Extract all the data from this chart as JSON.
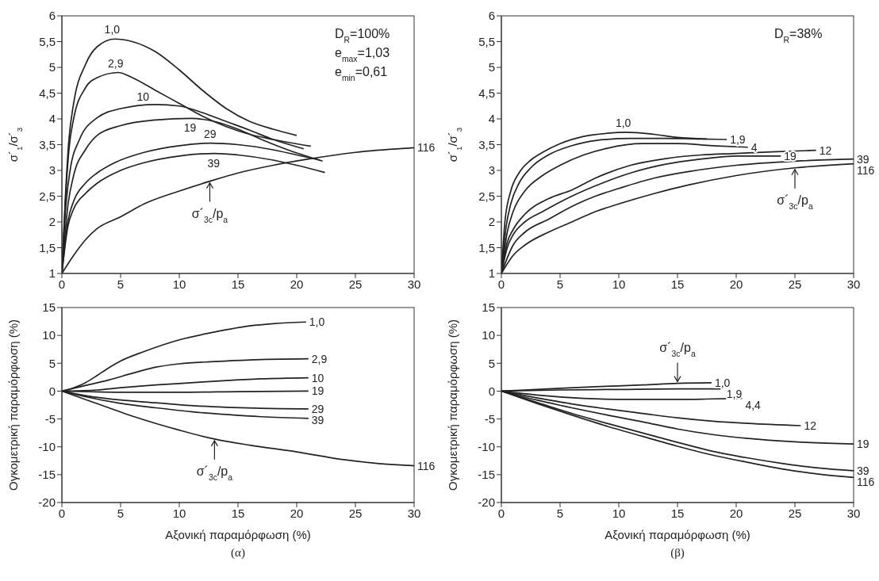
{
  "chart_data": [
    {
      "type": "line",
      "ylabel": "σ´$_{1}$/σ´$_{3}$",
      "xlim": [
        0,
        30
      ],
      "xticks": [
        0,
        5,
        10,
        15,
        20,
        25,
        30
      ],
      "ylim": [
        1,
        6
      ],
      "yticks": [
        1,
        {
          "value": 1.5,
          "label": "1,5"
        },
        2,
        {
          "value": 2.5,
          "label": "2,5"
        },
        3,
        {
          "value": 3.5,
          "label": "3,5"
        },
        4,
        {
          "value": 4.5,
          "label": "4,5"
        },
        5,
        {
          "value": 5.5,
          "label": "5,5"
        },
        6
      ],
      "annotations": [
        "D$_{R}$=100%",
        "e$_{max}$=1,03",
        "e$_{min}$=0,61",
        {
          "text": "σ´$_{3c}$/p$_{a}$",
          "x": 12.6,
          "y": 2.79
        }
      ],
      "series": [
        {
          "name": "1,0",
          "color": "#222222",
          "x": [
            0,
            0.3,
            0.6,
            1,
            2,
            3,
            4.5,
            6,
            8,
            10,
            12,
            14,
            16,
            18,
            20
          ],
          "values": [
            1,
            2.5,
            3.6,
            4.3,
            5.05,
            5.4,
            5.55,
            5.5,
            5.3,
            4.95,
            4.55,
            4.2,
            3.95,
            3.8,
            3.68
          ]
        },
        {
          "name": "2,9",
          "color": "#222222",
          "x": [
            0,
            0.3,
            0.6,
            1,
            2,
            3,
            4.8,
            6,
            8,
            10,
            12,
            14,
            16,
            18,
            21.2
          ],
          "values": [
            1,
            2.4,
            3.4,
            4.0,
            4.6,
            4.8,
            4.9,
            4.8,
            4.55,
            4.3,
            4.05,
            3.85,
            3.7,
            3.6,
            3.47
          ]
        },
        {
          "name": "10",
          "color": "#222222",
          "x": [
            0,
            0.3,
            0.7,
            1.5,
            3,
            5,
            8,
            10,
            12,
            14,
            16,
            18,
            20.6
          ],
          "values": [
            1,
            2.2,
            3.0,
            3.6,
            4.02,
            4.2,
            4.28,
            4.25,
            4.12,
            3.95,
            3.78,
            3.6,
            3.42
          ]
        },
        {
          "name": "19",
          "color": "#222222",
          "x": [
            0,
            0.5,
            1,
            2,
            3,
            5,
            8,
            11,
            13,
            15,
            17,
            19,
            22.2
          ],
          "values": [
            1,
            2.3,
            2.9,
            3.4,
            3.68,
            3.87,
            3.98,
            4.01,
            3.95,
            3.8,
            3.6,
            3.42,
            3.18
          ]
        },
        {
          "name": "29",
          "color": "#222222",
          "x": [
            0,
            0.5,
            1,
            2,
            3,
            4.5,
            7,
            10,
            12.7,
            15,
            18,
            20,
            22
          ],
          "values": [
            1,
            2.0,
            2.4,
            2.75,
            2.95,
            3.15,
            3.35,
            3.48,
            3.53,
            3.5,
            3.4,
            3.3,
            3.2
          ]
        },
        {
          "name": "39",
          "color": "#222222",
          "x": [
            0,
            0.5,
            1,
            2,
            3,
            5,
            7,
            10,
            13,
            15,
            18,
            20,
            22.4
          ],
          "values": [
            1,
            1.9,
            2.25,
            2.55,
            2.75,
            3.0,
            3.15,
            3.28,
            3.33,
            3.3,
            3.2,
            3.1,
            2.96
          ]
        },
        {
          "name": "116",
          "color": "#222222",
          "x": [
            0,
            1,
            2,
            3,
            5,
            7,
            10,
            12.6,
            15,
            18,
            21,
            25,
            30
          ],
          "values": [
            1,
            1.35,
            1.65,
            1.87,
            2.1,
            2.35,
            2.6,
            2.79,
            2.95,
            3.1,
            3.22,
            3.35,
            3.44
          ]
        }
      ]
    },
    {
      "type": "line",
      "ylabel": "σ´$_{1}$/σ´$_{3}$",
      "xlim": [
        0,
        30
      ],
      "xticks": [
        0,
        5,
        10,
        15,
        20,
        25,
        30
      ],
      "ylim": [
        1,
        6
      ],
      "yticks": [
        1,
        {
          "value": 1.5,
          "label": "1,5"
        },
        2,
        {
          "value": 2.5,
          "label": "2,5"
        },
        3,
        {
          "value": 3.5,
          "label": "3,5"
        },
        4,
        {
          "value": 4.5,
          "label": "4,5"
        },
        5,
        {
          "value": 5.5,
          "label": "5,5"
        },
        6
      ],
      "annotations": [
        "D$_{R}$=38%",
        {
          "text": "σ´$_{3c}$/p$_{a}$",
          "x": 25,
          "y": 3.05
        }
      ],
      "series": [
        {
          "name": "1,0",
          "color": "#222222",
          "x": [
            0,
            0.3,
            0.8,
            1.5,
            2.5,
            3.5,
            5,
            7,
            9,
            10.6,
            13,
            15,
            17.5
          ],
          "values": [
            1,
            2.0,
            2.6,
            2.95,
            3.2,
            3.35,
            3.52,
            3.66,
            3.72,
            3.74,
            3.7,
            3.64,
            3.61
          ]
        },
        {
          "name": "1,9",
          "color": "#222222",
          "x": [
            0,
            0.4,
            0.8,
            1.5,
            2.5,
            4,
            6,
            8,
            11,
            14,
            17,
            19.2
          ],
          "values": [
            1,
            1.9,
            2.35,
            2.75,
            3.05,
            3.3,
            3.48,
            3.58,
            3.62,
            3.62,
            3.61,
            3.6
          ]
        },
        {
          "name": "4",
          "color": "#222222",
          "x": [
            0,
            0.5,
            1,
            2,
            3.5,
            5,
            7,
            9,
            12,
            15,
            18,
            21
          ],
          "values": [
            1,
            1.8,
            2.2,
            2.6,
            2.9,
            3.1,
            3.3,
            3.43,
            3.52,
            3.52,
            3.48,
            3.45
          ]
        },
        {
          "name": "12",
          "color": "#222222",
          "x": [
            0,
            0.5,
            1,
            2,
            4,
            6,
            8,
            11,
            14,
            17,
            20,
            23,
            26.8
          ],
          "values": [
            1,
            1.6,
            1.85,
            2.15,
            2.45,
            2.62,
            2.85,
            3.1,
            3.23,
            3.3,
            3.33,
            3.36,
            3.39
          ]
        },
        {
          "name": "19",
          "color": "#222222",
          "x": [
            0,
            0.5,
            1,
            2,
            3.5,
            6,
            8,
            11,
            14,
            17,
            20,
            23.8
          ],
          "values": [
            1,
            1.5,
            1.75,
            2.0,
            2.2,
            2.5,
            2.7,
            2.95,
            3.12,
            3.22,
            3.28,
            3.28
          ]
        },
        {
          "name": "39",
          "color": "#222222",
          "x": [
            0,
            1,
            2,
            4,
            6,
            8,
            10,
            13,
            16,
            20,
            25,
            30
          ],
          "values": [
            1,
            1.55,
            1.8,
            2.05,
            2.3,
            2.5,
            2.65,
            2.85,
            2.98,
            3.1,
            3.18,
            3.22
          ]
        },
        {
          "name": "116",
          "color": "#222222",
          "x": [
            0,
            1,
            2,
            4,
            6,
            8,
            10,
            13,
            16,
            20,
            25,
            30
          ],
          "values": [
            1,
            1.35,
            1.55,
            1.8,
            2.0,
            2.2,
            2.35,
            2.55,
            2.72,
            2.9,
            3.05,
            3.13
          ]
        }
      ]
    },
    {
      "type": "line",
      "title": "(α)",
      "xlabel": "Αξονική παραμόρφωση (%)",
      "ylabel": "Ογκομετρική παραμόρφωση (%)",
      "xlim": [
        0,
        30
      ],
      "xticks": [
        0,
        5,
        10,
        15,
        20,
        25,
        30
      ],
      "ylim": [
        -20,
        15
      ],
      "yticks": [
        -20,
        -15,
        -10,
        -5,
        0,
        5,
        10,
        15
      ],
      "annotations": [
        {
          "text": "σ´$_{3c}$/p$_{a}$",
          "x": 13,
          "y": -8.6
        }
      ],
      "series": [
        {
          "name": "1,0",
          "color": "#222222",
          "x": [
            0,
            1,
            2,
            3,
            4,
            5,
            7,
            10,
            13,
            16,
            18,
            20.8
          ],
          "values": [
            0,
            0.6,
            1.5,
            2.8,
            4.2,
            5.4,
            7.1,
            9.2,
            10.6,
            11.7,
            12.1,
            12.4
          ]
        },
        {
          "name": "2,9",
          "color": "#222222",
          "x": [
            0,
            2,
            4,
            6,
            8,
            10,
            13,
            16,
            21
          ],
          "values": [
            0,
            1.0,
            2.0,
            3.2,
            4.3,
            4.9,
            5.3,
            5.6,
            5.8
          ]
        },
        {
          "name": "10",
          "color": "#222222",
          "x": [
            0,
            3,
            5,
            8,
            11,
            14,
            17,
            21
          ],
          "values": [
            0,
            0.2,
            0.6,
            1.1,
            1.5,
            1.9,
            2.2,
            2.4
          ]
        },
        {
          "name": "19",
          "color": "#222222",
          "x": [
            0,
            5,
            10,
            15,
            21
          ],
          "values": [
            0,
            -0.2,
            -0.2,
            -0.1,
            0
          ]
        },
        {
          "name": "29",
          "color": "#222222",
          "x": [
            0,
            2,
            5,
            8,
            11,
            14,
            17,
            21
          ],
          "values": [
            0,
            -0.8,
            -1.6,
            -2.1,
            -2.6,
            -2.9,
            -3.1,
            -3.2
          ]
        },
        {
          "name": "39",
          "color": "#222222",
          "x": [
            0,
            2,
            5,
            8,
            11,
            14,
            17,
            21
          ],
          "values": [
            0,
            -1.0,
            -2.2,
            -3.0,
            -3.7,
            -4.2,
            -4.6,
            -4.9
          ]
        },
        {
          "name": "116",
          "color": "#222222",
          "x": [
            0,
            2,
            4,
            6,
            8,
            10,
            13,
            16,
            20,
            24,
            27,
            30
          ],
          "values": [
            0,
            -1.5,
            -3.0,
            -4.5,
            -5.8,
            -7.0,
            -8.6,
            -9.7,
            -10.9,
            -12.3,
            -13.0,
            -13.4
          ]
        }
      ]
    },
    {
      "type": "line",
      "title": "(β)",
      "xlabel": "Αξονική παραμόρφωση (%)",
      "ylabel": "Ογκομετρική παραμόρφωση (%)",
      "xlim": [
        0,
        30
      ],
      "xticks": [
        0,
        5,
        10,
        15,
        20,
        25,
        30
      ],
      "ylim": [
        -20,
        15
      ],
      "yticks": [
        -20,
        -15,
        -10,
        -5,
        0,
        5,
        10,
        15
      ],
      "annotations": [
        {
          "text": "σ´$_{3c}$/p$_{a}$",
          "x": 15,
          "y": 1.4
        }
      ],
      "series": [
        {
          "name": "1,0",
          "color": "#222222",
          "x": [
            0,
            4,
            8,
            12,
            15,
            17.9
          ],
          "values": [
            0,
            0.4,
            0.8,
            1.1,
            1.4,
            1.5
          ]
        },
        {
          "name": "1,9",
          "color": "#222222",
          "x": [
            0,
            5,
            10,
            15,
            18.9
          ],
          "values": [
            0,
            0.2,
            0.3,
            0.4,
            0.4
          ]
        },
        {
          "name": "4,4",
          "color": "#222222",
          "x": [
            0,
            3,
            7,
            11,
            15,
            18,
            20.5
          ],
          "values": [
            0,
            -0.7,
            -1.3,
            -1.5,
            -1.5,
            -1.4,
            -1.3
          ]
        },
        {
          "name": "12",
          "color": "#222222",
          "x": [
            0,
            3,
            6,
            9,
            12,
            15,
            18,
            21,
            25.5
          ],
          "values": [
            0,
            -1.2,
            -2.3,
            -3.2,
            -4.0,
            -4.8,
            -5.4,
            -5.8,
            -6.2
          ]
        },
        {
          "name": "19",
          "color": "#222222",
          "x": [
            0,
            3,
            6,
            9,
            12,
            15,
            18,
            21,
            25,
            30
          ],
          "values": [
            0,
            -1.6,
            -3.0,
            -4.3,
            -5.5,
            -6.8,
            -7.8,
            -8.5,
            -9.1,
            -9.5
          ]
        },
        {
          "name": "39",
          "color": "#222222",
          "x": [
            0,
            3,
            6,
            9,
            12,
            15,
            18,
            21,
            24,
            27,
            30
          ],
          "values": [
            0,
            -2.0,
            -4.0,
            -5.8,
            -7.5,
            -9.2,
            -10.8,
            -12.0,
            -13.0,
            -13.8,
            -14.3
          ]
        },
        {
          "name": "116",
          "color": "#222222",
          "x": [
            0,
            3,
            6,
            9,
            12,
            15,
            18,
            21,
            24,
            27,
            30
          ],
          "values": [
            0,
            -2.2,
            -4.3,
            -6.3,
            -8.1,
            -9.9,
            -11.5,
            -12.8,
            -14.0,
            -14.9,
            -15.5
          ]
        }
      ]
    }
  ]
}
